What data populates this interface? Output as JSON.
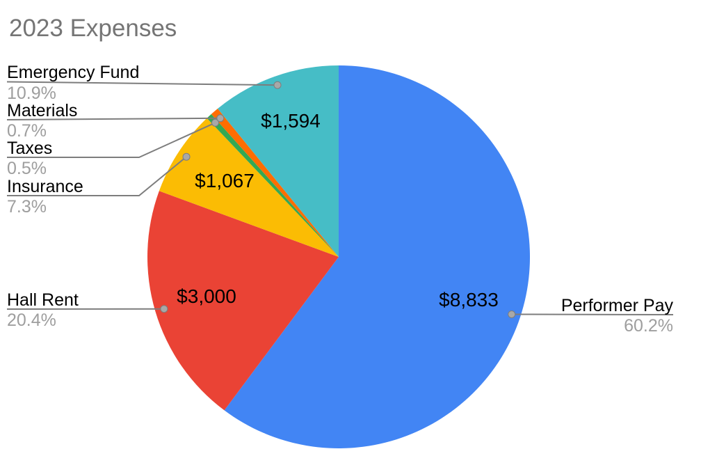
{
  "chart_data": {
    "type": "pie",
    "title": "2023 Expenses",
    "legend_position": "none",
    "labels_style": "outside name + percent, inside dollar value",
    "slices": [
      {
        "label": "Performer Pay",
        "pct": 60.2,
        "pct_label": "60.2%",
        "value": "$8,833",
        "color": "#4285F4"
      },
      {
        "label": "Hall Rent",
        "pct": 20.4,
        "pct_label": "20.4%",
        "value": "$3,000",
        "color": "#EA4335"
      },
      {
        "label": "Insurance",
        "pct": 7.3,
        "pct_label": "7.3%",
        "value": "$1,067",
        "color": "#FBBC04"
      },
      {
        "label": "Taxes",
        "pct": 0.5,
        "pct_label": "0.5%",
        "value": null,
        "color": "#34A853"
      },
      {
        "label": "Materials",
        "pct": 0.7,
        "pct_label": "0.7%",
        "value": null,
        "color": "#FF6D01"
      },
      {
        "label": "Emergency Fund",
        "pct": 10.9,
        "pct_label": "10.9%",
        "value": "$1,594",
        "color": "#46BDC6"
      }
    ],
    "colors": {
      "title_text": "#757575",
      "label_text": "#000000",
      "percent_text": "#9e9e9e",
      "leader_line": "#7d7d7d",
      "leader_dot": "#a8a8a8"
    }
  }
}
